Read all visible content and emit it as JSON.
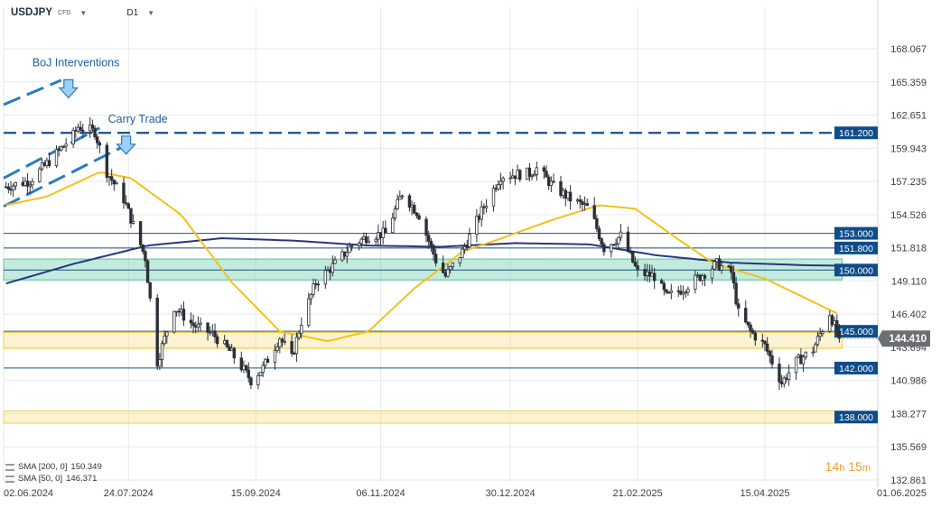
{
  "header": {
    "symbol": "USDJPY",
    "badge": "CFD",
    "timeframe": "D1"
  },
  "colors": {
    "background": "#ffffff",
    "grid": "#e6e9ee",
    "candle_up": "#ffffff",
    "candle_down": "#2b2f36",
    "sma200": "#2a3580",
    "sma50": "#f2c21b",
    "level_line": "#1b4f7f",
    "label_bg": "#0e4c8a",
    "green_zone": "#4fc7a0",
    "yellow_zone": "#f2d14a",
    "annotation": "#2c7bbf",
    "current_price_bg": "#6b6f74"
  },
  "chart_data": {
    "type": "candlestick",
    "title": "",
    "ylim": [
      132.861,
      168.067
    ],
    "y_ticks": [
      "168.067",
      "165.359",
      "162.651",
      "159.943",
      "157.235",
      "154.526",
      "151.818",
      "149.110",
      "146.402",
      "143.694",
      "140.986",
      "138.277",
      "135.569",
      "132.861"
    ],
    "x_ticks": [
      "02.06.2024",
      "24.07.2024",
      "15.09.2024",
      "06.11.2024",
      "30.12.2024",
      "21.02.2025",
      "15.04.2025",
      "01.06.2025"
    ],
    "x_range": [
      "2024-06-02",
      "2025-06-01"
    ],
    "last_date": "2025-05-16",
    "current_price": "144.410",
    "candle_path": [
      [
        "2024-06-03",
        156.8
      ],
      [
        "2024-06-13",
        157.3
      ],
      [
        "2024-06-24",
        159.5
      ],
      [
        "2024-07-01",
        161.0
      ],
      [
        "2024-07-03",
        161.7
      ],
      [
        "2024-07-10",
        161.3
      ],
      [
        "2024-07-15",
        158.0
      ],
      [
        "2024-07-22",
        155.8
      ],
      [
        "2024-07-31",
        151.0
      ],
      [
        "2024-08-05",
        142.5
      ],
      [
        "2024-08-12",
        147.0
      ],
      [
        "2024-08-20",
        145.5
      ],
      [
        "2024-08-28",
        144.8
      ],
      [
        "2024-09-05",
        143.2
      ],
      [
        "2024-09-13",
        141.0
      ],
      [
        "2024-09-18",
        142.0
      ],
      [
        "2024-09-25",
        144.5
      ],
      [
        "2024-09-30",
        142.8
      ],
      [
        "2024-10-04",
        145.8
      ],
      [
        "2024-10-10",
        149.0
      ],
      [
        "2024-10-18",
        150.5
      ],
      [
        "2024-10-25",
        152.0
      ],
      [
        "2024-11-01",
        152.8
      ],
      [
        "2024-11-08",
        153.0
      ],
      [
        "2024-11-15",
        156.3
      ],
      [
        "2024-11-22",
        154.5
      ],
      [
        "2024-11-29",
        150.8
      ],
      [
        "2024-12-03",
        149.5
      ],
      [
        "2024-12-10",
        151.5
      ],
      [
        "2024-12-18",
        154.8
      ],
      [
        "2024-12-26",
        157.7
      ],
      [
        "2025-01-07",
        157.9
      ],
      [
        "2025-01-10",
        158.3
      ],
      [
        "2025-01-17",
        156.8
      ],
      [
        "2025-01-24",
        155.8
      ],
      [
        "2025-02-01",
        155.0
      ],
      [
        "2025-02-07",
        151.8
      ],
      [
        "2025-02-14",
        152.8
      ],
      [
        "2025-02-21",
        149.8
      ],
      [
        "2025-02-28",
        149.5
      ],
      [
        "2025-03-05",
        147.8
      ],
      [
        "2025-03-12",
        148.5
      ],
      [
        "2025-03-19",
        149.5
      ],
      [
        "2025-03-26",
        150.5
      ],
      [
        "2025-04-01",
        149.8
      ],
      [
        "2025-04-04",
        146.5
      ],
      [
        "2025-04-09",
        145.0
      ],
      [
        "2025-04-15",
        143.8
      ],
      [
        "2025-04-22",
        140.8
      ],
      [
        "2025-04-28",
        142.5
      ],
      [
        "2025-05-05",
        143.5
      ],
      [
        "2025-05-12",
        146.5
      ],
      [
        "2025-05-16",
        144.41
      ]
    ],
    "sma200_path": [
      [
        "2024-06-03",
        148.9
      ],
      [
        "2024-07-01",
        150.5
      ],
      [
        "2024-08-01",
        152.0
      ],
      [
        "2024-09-01",
        152.6
      ],
      [
        "2024-10-01",
        152.4
      ],
      [
        "2024-11-01",
        152.0
      ],
      [
        "2024-12-01",
        151.9
      ],
      [
        "2025-01-01",
        152.2
      ],
      [
        "2025-02-01",
        152.1
      ],
      [
        "2025-03-01",
        151.2
      ],
      [
        "2025-04-01",
        150.6
      ],
      [
        "2025-05-01",
        150.4
      ],
      [
        "2025-05-16",
        150.349
      ]
    ],
    "sma50_path": [
      [
        "2024-06-03",
        155.3
      ],
      [
        "2024-06-20",
        156.0
      ],
      [
        "2024-07-12",
        158.0
      ],
      [
        "2024-07-25",
        157.5
      ],
      [
        "2024-08-15",
        154.5
      ],
      [
        "2024-09-05",
        149.0
      ],
      [
        "2024-09-25",
        145.0
      ],
      [
        "2024-10-15",
        144.2
      ],
      [
        "2024-11-01",
        145.0
      ],
      [
        "2024-11-20",
        148.5
      ],
      [
        "2024-12-10",
        151.5
      ],
      [
        "2024-12-25",
        152.5
      ],
      [
        "2025-01-15",
        154.0
      ],
      [
        "2025-02-05",
        155.3
      ],
      [
        "2025-02-20",
        155.0
      ],
      [
        "2025-03-10",
        152.5
      ],
      [
        "2025-03-25",
        150.5
      ],
      [
        "2025-04-15",
        149.3
      ],
      [
        "2025-05-16",
        146.371
      ]
    ],
    "horizontal_levels": [
      {
        "label": "161.200",
        "style": "dashed"
      },
      {
        "label": "153.000",
        "style": "solid"
      },
      {
        "label": "151.800",
        "style": "solid"
      },
      {
        "label": "150.000",
        "style": "solid"
      },
      {
        "label": "145.000",
        "style": "solid"
      },
      {
        "label": "142.000",
        "style": "solid"
      },
      {
        "label": "138.000",
        "style": "none"
      }
    ],
    "zones": [
      {
        "color": "green",
        "from": 149.2,
        "to": 150.9
      },
      {
        "color": "yellow",
        "from": 143.6,
        "to": 144.9
      },
      {
        "color": "yellow",
        "from": 137.5,
        "to": 138.5
      }
    ],
    "annotations": [
      {
        "text": "BoJ Interventions",
        "arrow": "down",
        "date": "2024-06-29",
        "price": 164.8
      },
      {
        "text": "Carry Trade",
        "arrow": "down",
        "date": "2024-07-23",
        "price": 160.2
      }
    ],
    "trend_lines": [
      {
        "from": [
          "2024-06-02",
          163.5
        ],
        "to": [
          "2024-06-26",
          165.5
        ]
      },
      {
        "from": [
          "2024-06-02",
          157.5
        ],
        "to": [
          "2024-07-12",
          161.6
        ]
      },
      {
        "from": [
          "2024-06-02",
          155.2
        ],
        "to": [
          "2024-07-23",
          160.2
        ]
      }
    ],
    "indicators": [
      {
        "name": "SMA [200, 0]",
        "value": "150.349"
      },
      {
        "name": "SMA [50, 0]",
        "value": "146.371"
      }
    ]
  },
  "countdown": {
    "hours": "14",
    "hours_unit": "h",
    "minutes": "15",
    "minutes_unit": "m"
  }
}
